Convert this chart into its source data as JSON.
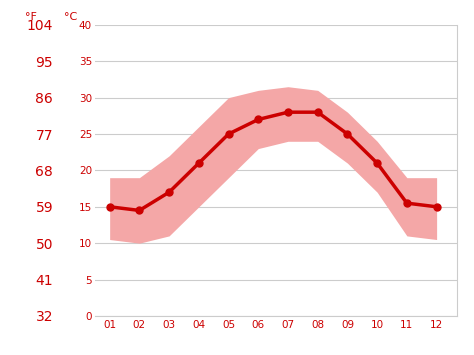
{
  "months": [
    1,
    2,
    3,
    4,
    5,
    6,
    7,
    8,
    9,
    10,
    11,
    12
  ],
  "month_labels": [
    "01",
    "02",
    "03",
    "04",
    "05",
    "06",
    "07",
    "08",
    "09",
    "10",
    "11",
    "12"
  ],
  "mean_temp_c": [
    15,
    14.5,
    17,
    21,
    25,
    27,
    28,
    28,
    25,
    21,
    15.5,
    15
  ],
  "upper_temp_c": [
    19,
    19,
    22,
    26,
    30,
    31,
    31.5,
    31,
    28,
    24,
    19,
    19
  ],
  "lower_temp_c": [
    10.5,
    10,
    11,
    15,
    19,
    23,
    24,
    24,
    21,
    17,
    11,
    10.5
  ],
  "line_color": "#cc0000",
  "band_color": "#f4a7a7",
  "grid_color": "#cccccc",
  "axis_color": "#cc0000",
  "background_color": "#ffffff",
  "ylim_c": [
    0,
    40
  ],
  "yticks_c": [
    0,
    5,
    10,
    15,
    20,
    25,
    30,
    35,
    40
  ],
  "yticks_f": [
    32,
    41,
    50,
    59,
    68,
    77,
    86,
    95,
    104
  ],
  "label_f": "°F",
  "label_c": "°C",
  "line_width": 2.5,
  "marker_size": 5
}
